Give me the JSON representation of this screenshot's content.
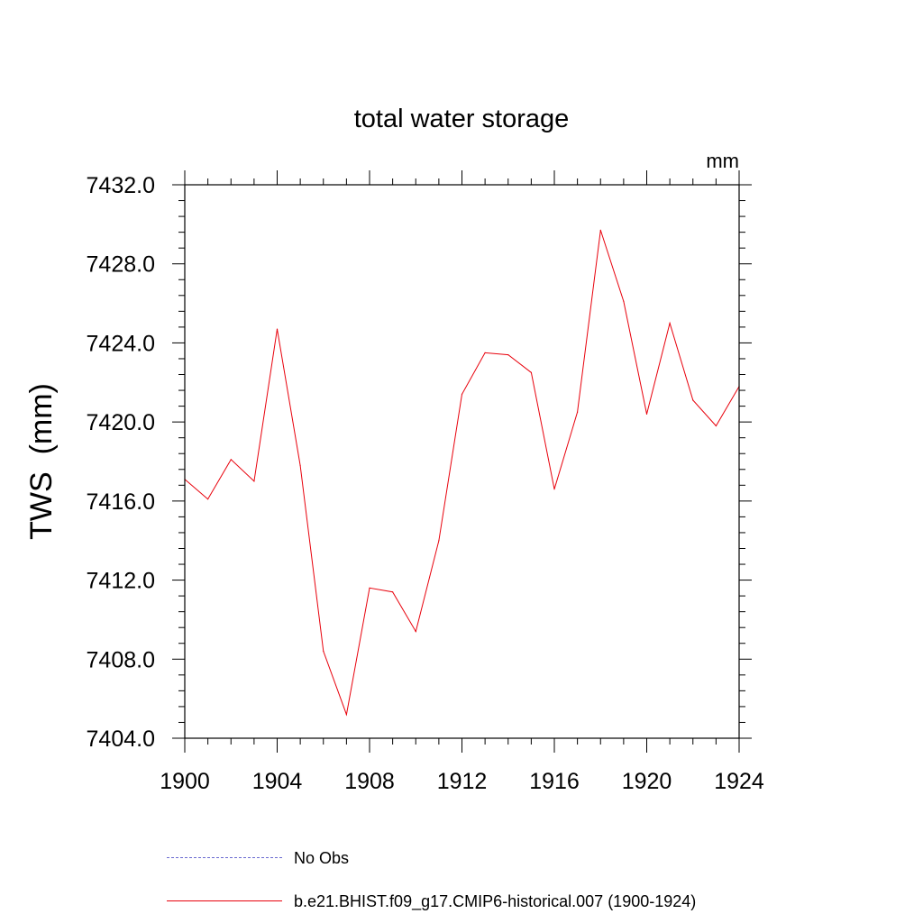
{
  "chart_data": {
    "type": "line",
    "title": "total water storage",
    "units_label": "mm",
    "ylabel": "TWS  (mm)",
    "xlabel": "",
    "xlim": [
      1900,
      1924
    ],
    "ylim": [
      7404,
      7432
    ],
    "xticks": [
      1900,
      1904,
      1908,
      1912,
      1916,
      1920,
      1924
    ],
    "xtick_labels": [
      "1900",
      "1904",
      "1908",
      "1912",
      "1916",
      "1920",
      "1924"
    ],
    "yticks": [
      7404,
      7408,
      7412,
      7416,
      7420,
      7424,
      7428,
      7432
    ],
    "ytick_labels": [
      "7404.0",
      "7408.0",
      "7412.0",
      "7416.0",
      "7420.0",
      "7424.0",
      "7428.0",
      "7432.0"
    ],
    "series": [
      {
        "name": "b.e21.BHIST.f09_g17.CMIP6-historical.007 (1900-1924)",
        "color": "#e8000b",
        "x": [
          1900,
          1901,
          1902,
          1903,
          1904,
          1905,
          1906,
          1907,
          1908,
          1909,
          1910,
          1911,
          1912,
          1913,
          1914,
          1915,
          1916,
          1917,
          1918,
          1919,
          1920,
          1921,
          1922,
          1923,
          1924
        ],
        "y": [
          7417.1,
          7416.1,
          7418.1,
          7417.0,
          7424.7,
          7417.8,
          7408.4,
          7405.2,
          7411.6,
          7411.4,
          7409.4,
          7414.0,
          7421.4,
          7423.5,
          7423.4,
          7422.5,
          7416.6,
          7420.5,
          7429.7,
          7426.1,
          7420.4,
          7425.0,
          7421.1,
          7419.8,
          7421.8
        ]
      }
    ],
    "legend": [
      {
        "label": "No Obs",
        "color": "#6a6ad0",
        "style": "dashed"
      },
      {
        "label": "b.e21.BHIST.f09_g17.CMIP6-historical.007 (1900-1924)",
        "color": "#e8000b",
        "style": "solid"
      }
    ],
    "legend_position": "bottom",
    "grid": false
  }
}
